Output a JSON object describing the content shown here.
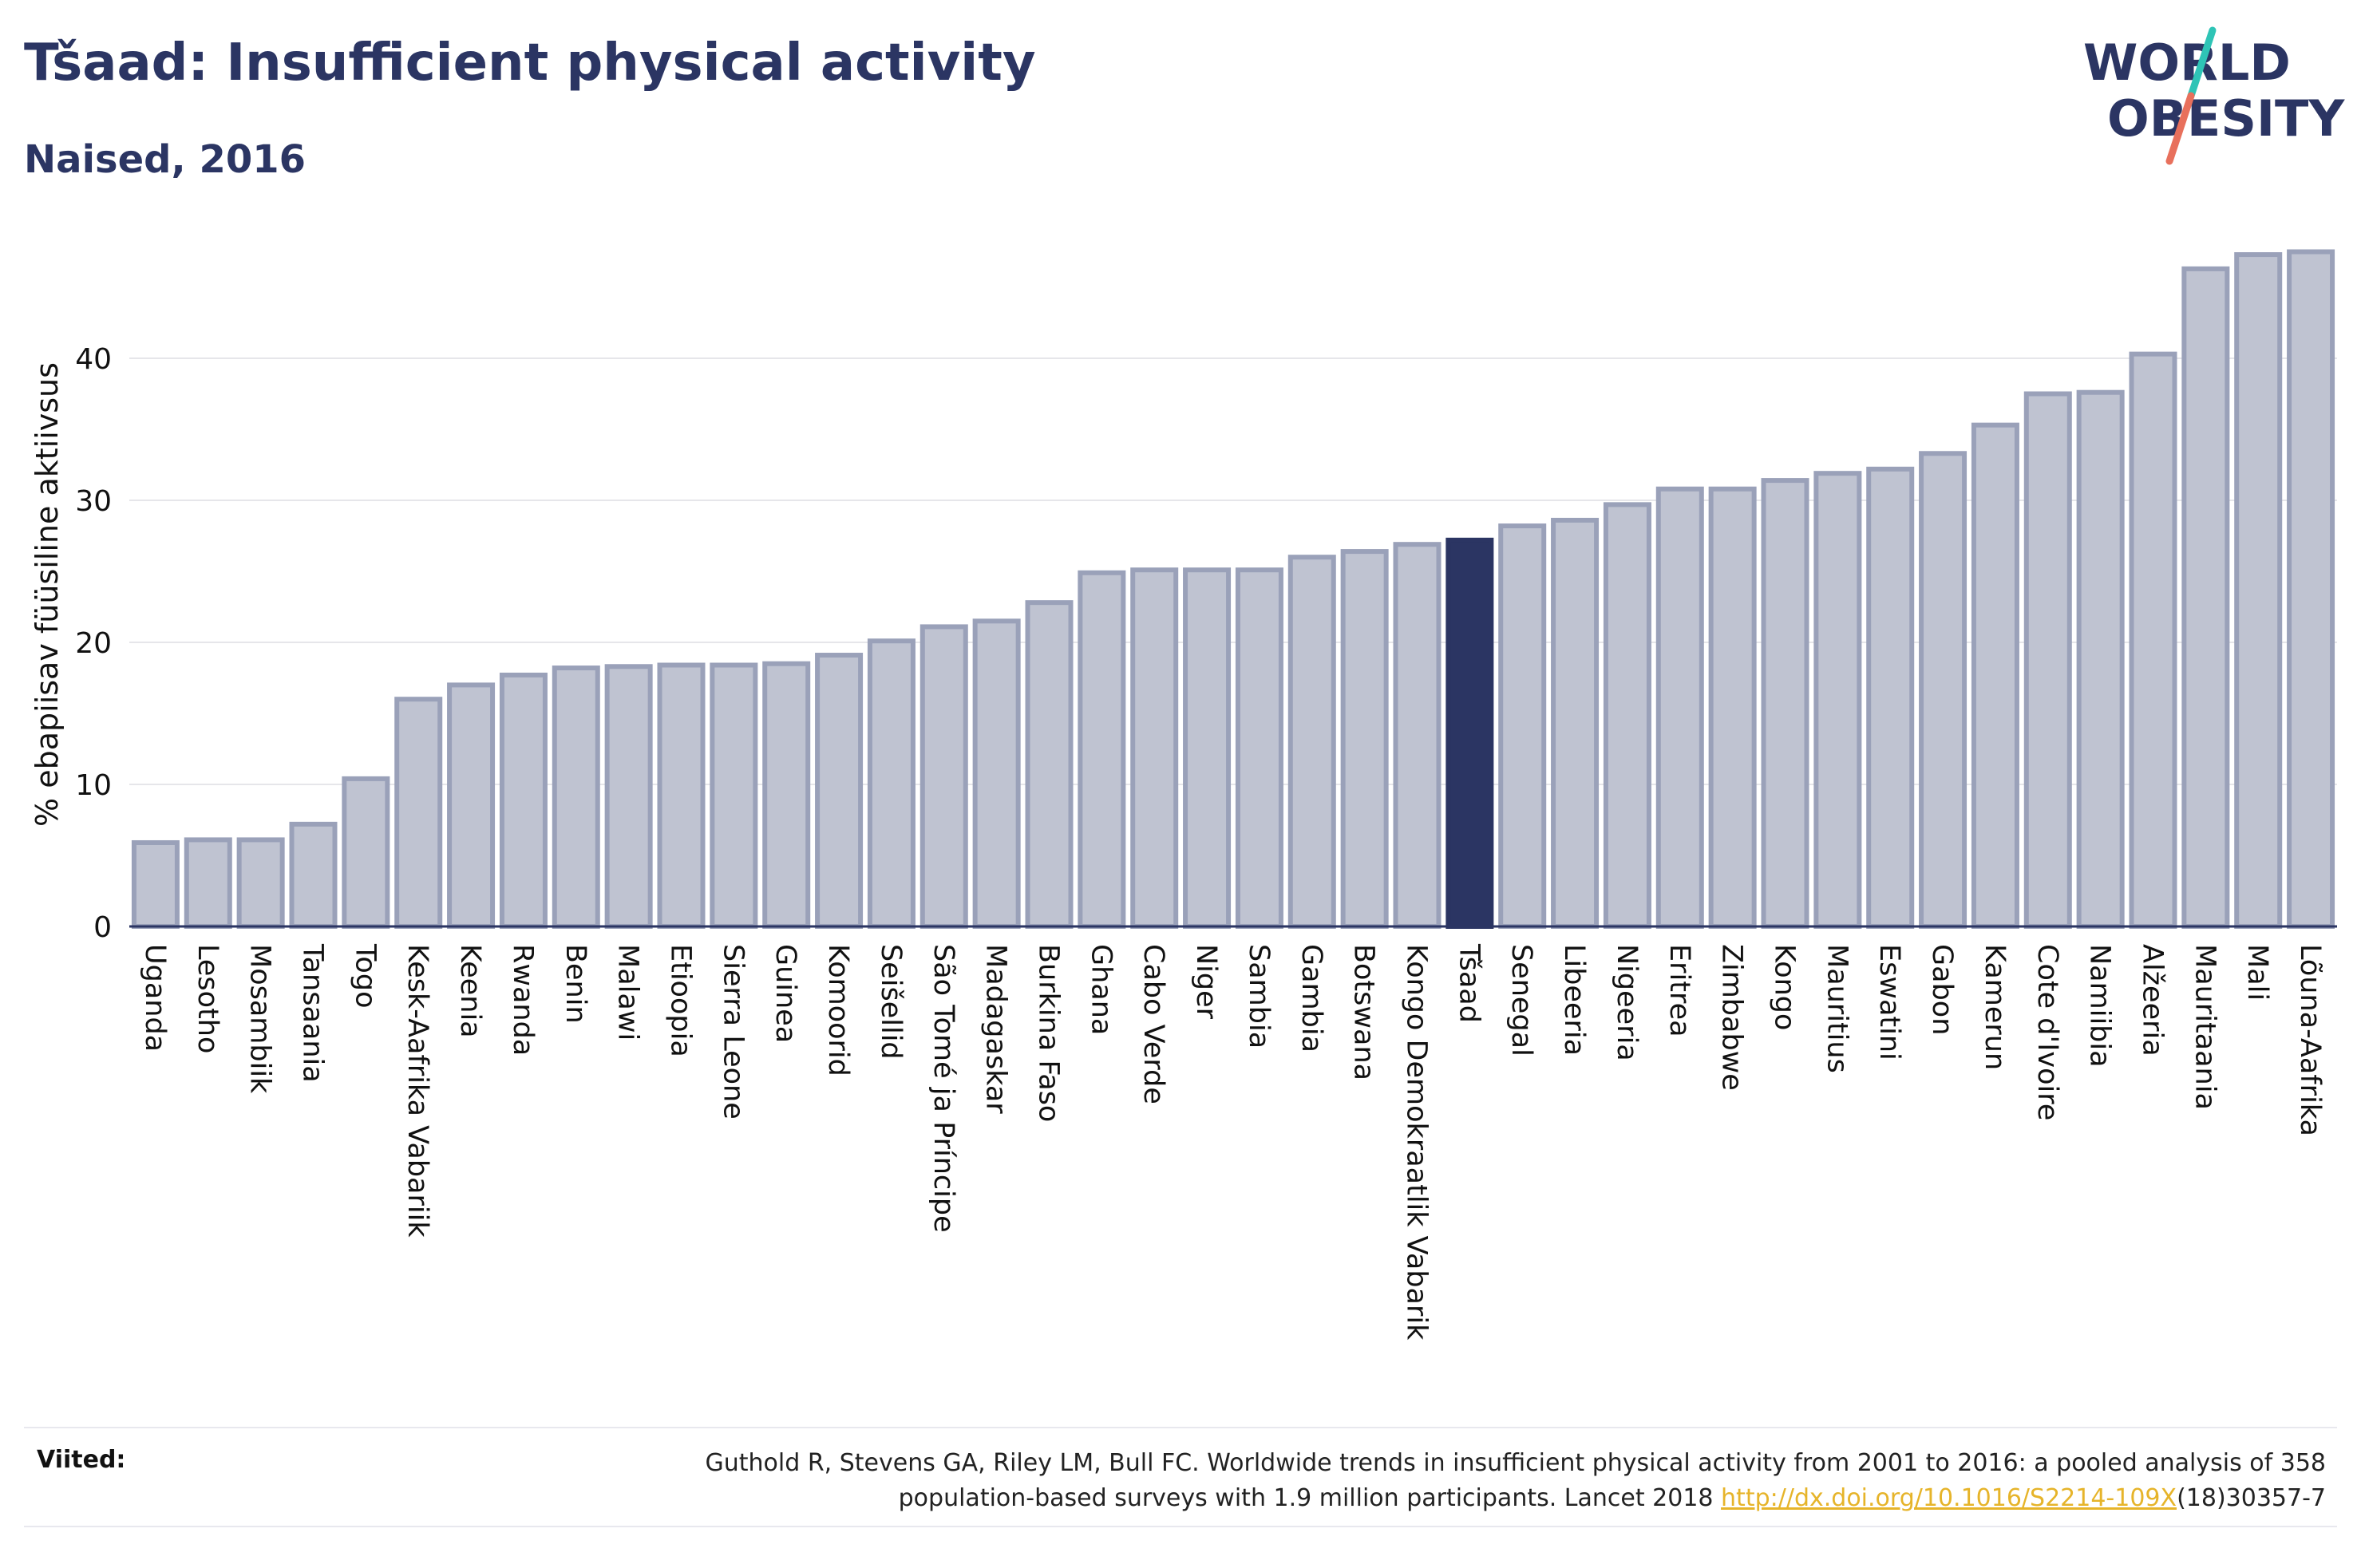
{
  "header": {
    "title": "Tšaad: Insufficient physical activity",
    "subtitle": "Naised, 2016"
  },
  "logo": {
    "line1": "WORLD",
    "line2": "OBESITY",
    "slash_colors": [
      "#2ec4b6",
      "#e8705c"
    ],
    "text_color": "#2b3563"
  },
  "colors": {
    "bar_default": "#bfc3d1",
    "bar_border": "#9aa1b9",
    "bar_highlight": "#2b3563",
    "axis": "#2b3563",
    "grid": "#e6e6ea"
  },
  "chart_data": {
    "type": "bar",
    "ylabel": "% ebapiisav füüsiline aktiivsus",
    "ylim": [
      0,
      50
    ],
    "yticks": [
      0,
      10,
      20,
      30,
      40
    ],
    "grid": true,
    "highlight": "Tšaad",
    "categories": [
      "Uganda",
      "Lesotho",
      "Mosambiik",
      "Tansaania",
      "Togo",
      "Kesk-Aafrika Vabariik",
      "Keenia",
      "Rwanda",
      "Benin",
      "Malawi",
      "Etioopia",
      "Sierra Leone",
      "Guinea",
      "Komoorid",
      "Seišellid",
      "São Tomé ja Príncipe",
      "Madagaskar",
      "Burkina Faso",
      "Ghana",
      "Cabo Verde",
      "Niger",
      "Sambia",
      "Gambia",
      "Botswana",
      "Kongo Demokraatlik Vabarik",
      "Tšaad",
      "Senegal",
      "Libeeria",
      "Nigeeria",
      "Eritrea",
      "Zimbabwe",
      "Kongo",
      "Mauritius",
      "Eswatini",
      "Gabon",
      "Kamerun",
      "Cote d'Ivoire",
      "Namiibia",
      "Alžeeria",
      "Mauritaania",
      "Mali",
      "Lõuna-Aafrika"
    ],
    "values": [
      5.9,
      6.1,
      6.1,
      7.2,
      10.4,
      16.0,
      17.0,
      17.7,
      18.2,
      18.3,
      18.4,
      18.4,
      18.5,
      19.1,
      20.1,
      21.1,
      21.5,
      22.8,
      24.9,
      25.1,
      25.1,
      25.1,
      26.0,
      26.4,
      26.9,
      27.2,
      28.2,
      28.6,
      29.7,
      30.8,
      30.8,
      31.4,
      31.9,
      32.2,
      33.3,
      35.3,
      37.5,
      37.6,
      40.3,
      46.3,
      47.3,
      47.5
    ]
  },
  "footer": {
    "sources_label": "Viited:",
    "citation_line1": "Guthold R, Stevens GA, Riley LM, Bull FC. Worldwide trends in insufficient physical activity from 2001 to 2016: a pooled analysis of 358",
    "citation_line2_pre": "population-based surveys with 1.9 million participants. Lancet 2018 ",
    "citation_link": "http://dx.doi.org/10.1016/S2214-109X",
    "citation_line2_post": "(18)30357-7"
  }
}
